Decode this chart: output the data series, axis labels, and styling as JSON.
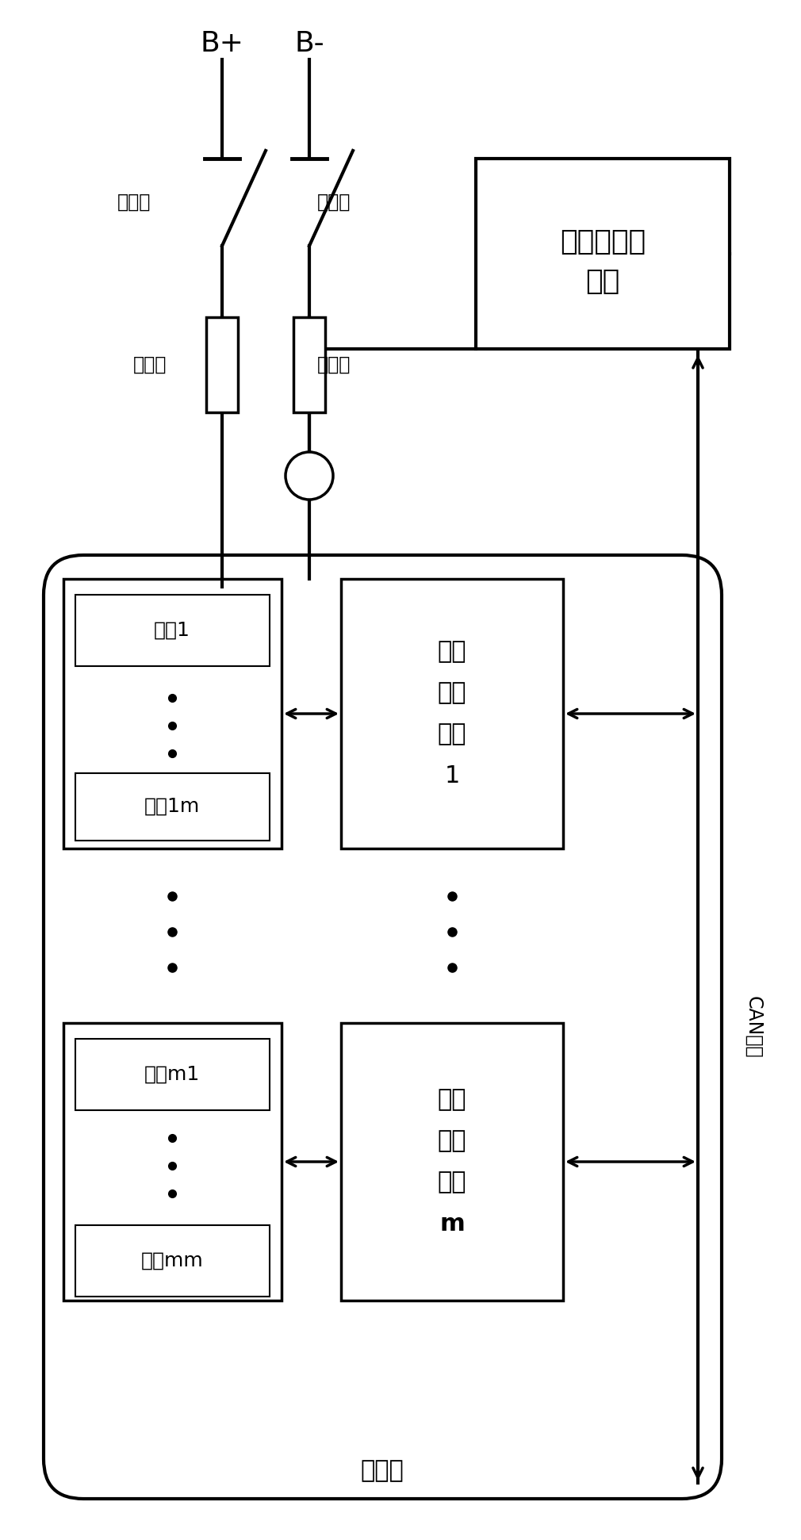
{
  "fig_width": 10.1,
  "fig_height": 19.42,
  "bg_color": "#ffffff",
  "line_color": "#000000",
  "lw": 2.0,
  "labels": {
    "Bplus": "B+",
    "Bminus": "B-",
    "contactor1": "接触器",
    "contactor2": "接触器",
    "fuse1": "熔断器",
    "fuse2": "熔断器",
    "bmu_title": "电池组管理\n单元",
    "battery_group": "电池组",
    "can_bus": "CAN总线",
    "cell1": "电池1",
    "cell1m": "电池1m",
    "bmu1_text": "电池\n管理\n单元\n1",
    "cellm1": "电池m1",
    "cellmm": "电池mm",
    "bmum_text": "电池\n管理\n单元\nm"
  }
}
